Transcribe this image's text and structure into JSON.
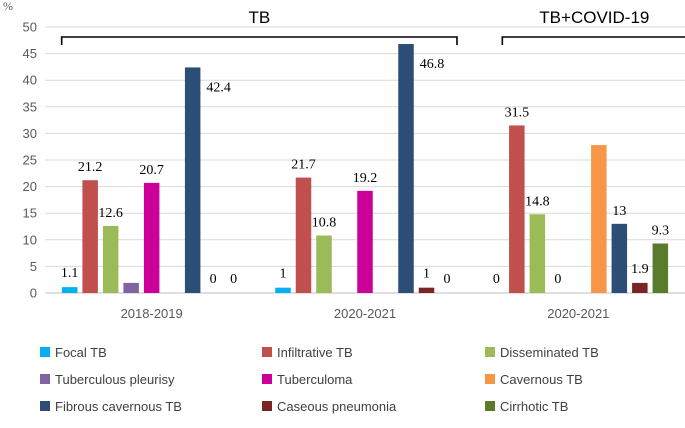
{
  "chart_data": {
    "type": "bar",
    "ylabel": "%",
    "ylim": [
      0,
      50
    ],
    "yticks": [
      0,
      5,
      10,
      15,
      20,
      25,
      30,
      35,
      40,
      45,
      50
    ],
    "grid": true,
    "categories": [
      "2018-2019",
      "2020-2021",
      "2020-2021"
    ],
    "groups": [
      {
        "label": "TB",
        "spans_categories": [
          0,
          1
        ]
      },
      {
        "label": "TB+COVID-19",
        "spans_categories": [
          2
        ]
      }
    ],
    "series": [
      {
        "name": "Focal TB",
        "color": "#00b0f0",
        "values": [
          1.1,
          1,
          0
        ],
        "labels": [
          "1.1",
          "1",
          "0"
        ]
      },
      {
        "name": "Infiltrative TB",
        "color": "#c0504d",
        "values": [
          21.2,
          21.7,
          31.5
        ],
        "labels": [
          "21.2",
          "21.7",
          "31.5"
        ]
      },
      {
        "name": "Disseminated TB",
        "color": "#9bbb59",
        "values": [
          12.6,
          10.8,
          14.8
        ],
        "labels": [
          "12.6",
          "10.8",
          "14.8"
        ]
      },
      {
        "name": "Tuberculous pleurisy",
        "color": "#8064a2",
        "values": [
          1.9,
          null,
          null
        ],
        "labels": [
          "",
          "",
          "0"
        ]
      },
      {
        "name": "Tuberculoma",
        "color": "#cc0099",
        "values": [
          20.7,
          19.2,
          null
        ],
        "labels": [
          "20.7",
          "19.2",
          ""
        ]
      },
      {
        "name": "Cavernous TB",
        "color": "#f79646",
        "values": [
          null,
          null,
          27.8
        ],
        "labels": [
          "",
          "",
          ""
        ]
      },
      {
        "name": "Fibrous cavernous TB",
        "color": "#2c4d75",
        "values": [
          42.4,
          46.8,
          13
        ],
        "labels": [
          "42.4",
          "46.8",
          "13"
        ]
      },
      {
        "name": "Caseous pneumonia",
        "color": "#7b2424",
        "values": [
          0,
          1,
          1.9
        ],
        "labels": [
          "0",
          "1",
          "1.9"
        ]
      },
      {
        "name": "Cirrhotic TB",
        "color": "#5a7a2c",
        "values": [
          0,
          0,
          9.3
        ],
        "labels": [
          "0",
          "0",
          "9.3"
        ]
      }
    ],
    "legend_position": "bottom"
  }
}
